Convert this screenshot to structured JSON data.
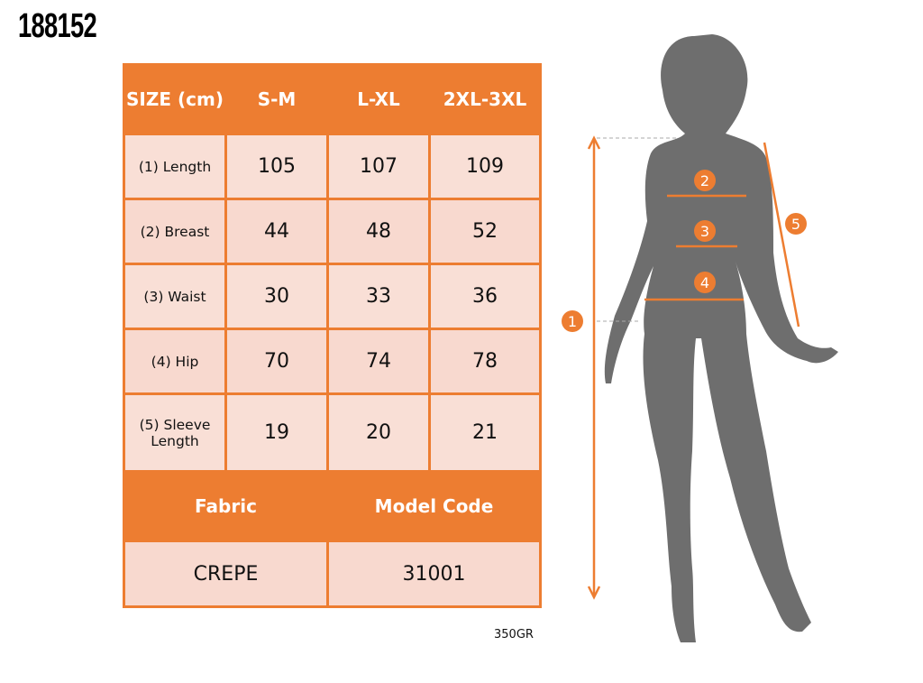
{
  "product_code": "188152",
  "table": {
    "header": [
      "SIZE (cm)",
      "S-M",
      "L-XL",
      "2XL-3XL"
    ],
    "rows": [
      {
        "label": "(1) Length",
        "values": [
          "105",
          "107",
          "109"
        ]
      },
      {
        "label": "(2) Breast",
        "values": [
          "44",
          "48",
          "52"
        ]
      },
      {
        "label": "(3) Waist",
        "values": [
          "30",
          "33",
          "36"
        ]
      },
      {
        "label": "(4) Hip",
        "values": [
          "70",
          "74",
          "78"
        ]
      },
      {
        "label": "(5) Sleeve Length",
        "values": [
          "19",
          "20",
          "21"
        ]
      }
    ],
    "footer_header": [
      "Fabric",
      "Model Code"
    ],
    "footer_values": [
      "CREPE",
      "31001"
    ]
  },
  "weight": "350GR",
  "figure": {
    "markers": [
      "1",
      "2",
      "3",
      "4",
      "5"
    ]
  },
  "colors": {
    "accent": "#ED7D31",
    "cell": "#F8D9CF",
    "silhouette": "#6E6E6E"
  }
}
